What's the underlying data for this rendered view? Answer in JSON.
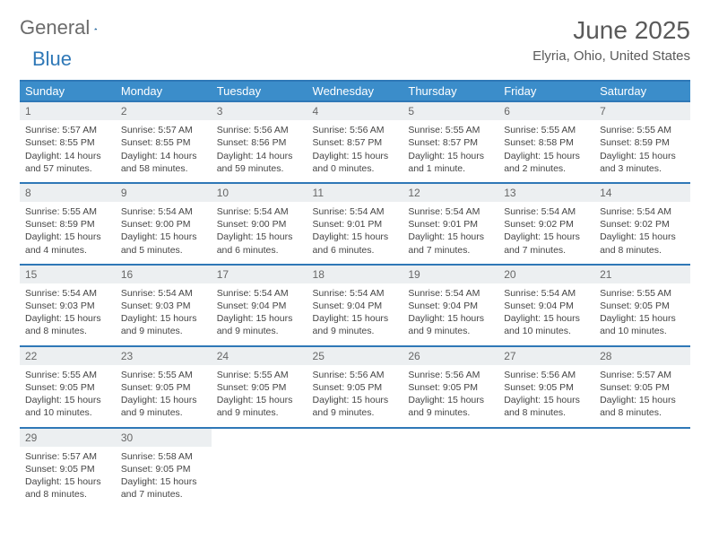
{
  "logo": {
    "word1": "General",
    "word2": "Blue"
  },
  "title": "June 2025",
  "location": "Elyria, Ohio, United States",
  "colors": {
    "header_bar": "#3b8dca",
    "header_border": "#2f78b7",
    "daynum_bg": "#eceff1",
    "text": "#454545",
    "location_text": "#5a5a5a"
  },
  "typography": {
    "month_title_fontsize": 28,
    "location_fontsize": 15,
    "dayheader_fontsize": 13,
    "body_fontsize": 10.5
  },
  "day_names": [
    "Sunday",
    "Monday",
    "Tuesday",
    "Wednesday",
    "Thursday",
    "Friday",
    "Saturday"
  ],
  "weeks": [
    [
      {
        "n": "1",
        "sunrise": "Sunrise: 5:57 AM",
        "sunset": "Sunset: 8:55 PM",
        "d1": "Daylight: 14 hours",
        "d2": "and 57 minutes."
      },
      {
        "n": "2",
        "sunrise": "Sunrise: 5:57 AM",
        "sunset": "Sunset: 8:55 PM",
        "d1": "Daylight: 14 hours",
        "d2": "and 58 minutes."
      },
      {
        "n": "3",
        "sunrise": "Sunrise: 5:56 AM",
        "sunset": "Sunset: 8:56 PM",
        "d1": "Daylight: 14 hours",
        "d2": "and 59 minutes."
      },
      {
        "n": "4",
        "sunrise": "Sunrise: 5:56 AM",
        "sunset": "Sunset: 8:57 PM",
        "d1": "Daylight: 15 hours",
        "d2": "and 0 minutes."
      },
      {
        "n": "5",
        "sunrise": "Sunrise: 5:55 AM",
        "sunset": "Sunset: 8:57 PM",
        "d1": "Daylight: 15 hours",
        "d2": "and 1 minute."
      },
      {
        "n": "6",
        "sunrise": "Sunrise: 5:55 AM",
        "sunset": "Sunset: 8:58 PM",
        "d1": "Daylight: 15 hours",
        "d2": "and 2 minutes."
      },
      {
        "n": "7",
        "sunrise": "Sunrise: 5:55 AM",
        "sunset": "Sunset: 8:59 PM",
        "d1": "Daylight: 15 hours",
        "d2": "and 3 minutes."
      }
    ],
    [
      {
        "n": "8",
        "sunrise": "Sunrise: 5:55 AM",
        "sunset": "Sunset: 8:59 PM",
        "d1": "Daylight: 15 hours",
        "d2": "and 4 minutes."
      },
      {
        "n": "9",
        "sunrise": "Sunrise: 5:54 AM",
        "sunset": "Sunset: 9:00 PM",
        "d1": "Daylight: 15 hours",
        "d2": "and 5 minutes."
      },
      {
        "n": "10",
        "sunrise": "Sunrise: 5:54 AM",
        "sunset": "Sunset: 9:00 PM",
        "d1": "Daylight: 15 hours",
        "d2": "and 6 minutes."
      },
      {
        "n": "11",
        "sunrise": "Sunrise: 5:54 AM",
        "sunset": "Sunset: 9:01 PM",
        "d1": "Daylight: 15 hours",
        "d2": "and 6 minutes."
      },
      {
        "n": "12",
        "sunrise": "Sunrise: 5:54 AM",
        "sunset": "Sunset: 9:01 PM",
        "d1": "Daylight: 15 hours",
        "d2": "and 7 minutes."
      },
      {
        "n": "13",
        "sunrise": "Sunrise: 5:54 AM",
        "sunset": "Sunset: 9:02 PM",
        "d1": "Daylight: 15 hours",
        "d2": "and 7 minutes."
      },
      {
        "n": "14",
        "sunrise": "Sunrise: 5:54 AM",
        "sunset": "Sunset: 9:02 PM",
        "d1": "Daylight: 15 hours",
        "d2": "and 8 minutes."
      }
    ],
    [
      {
        "n": "15",
        "sunrise": "Sunrise: 5:54 AM",
        "sunset": "Sunset: 9:03 PM",
        "d1": "Daylight: 15 hours",
        "d2": "and 8 minutes."
      },
      {
        "n": "16",
        "sunrise": "Sunrise: 5:54 AM",
        "sunset": "Sunset: 9:03 PM",
        "d1": "Daylight: 15 hours",
        "d2": "and 9 minutes."
      },
      {
        "n": "17",
        "sunrise": "Sunrise: 5:54 AM",
        "sunset": "Sunset: 9:04 PM",
        "d1": "Daylight: 15 hours",
        "d2": "and 9 minutes."
      },
      {
        "n": "18",
        "sunrise": "Sunrise: 5:54 AM",
        "sunset": "Sunset: 9:04 PM",
        "d1": "Daylight: 15 hours",
        "d2": "and 9 minutes."
      },
      {
        "n": "19",
        "sunrise": "Sunrise: 5:54 AM",
        "sunset": "Sunset: 9:04 PM",
        "d1": "Daylight: 15 hours",
        "d2": "and 9 minutes."
      },
      {
        "n": "20",
        "sunrise": "Sunrise: 5:54 AM",
        "sunset": "Sunset: 9:04 PM",
        "d1": "Daylight: 15 hours",
        "d2": "and 10 minutes."
      },
      {
        "n": "21",
        "sunrise": "Sunrise: 5:55 AM",
        "sunset": "Sunset: 9:05 PM",
        "d1": "Daylight: 15 hours",
        "d2": "and 10 minutes."
      }
    ],
    [
      {
        "n": "22",
        "sunrise": "Sunrise: 5:55 AM",
        "sunset": "Sunset: 9:05 PM",
        "d1": "Daylight: 15 hours",
        "d2": "and 10 minutes."
      },
      {
        "n": "23",
        "sunrise": "Sunrise: 5:55 AM",
        "sunset": "Sunset: 9:05 PM",
        "d1": "Daylight: 15 hours",
        "d2": "and 9 minutes."
      },
      {
        "n": "24",
        "sunrise": "Sunrise: 5:55 AM",
        "sunset": "Sunset: 9:05 PM",
        "d1": "Daylight: 15 hours",
        "d2": "and 9 minutes."
      },
      {
        "n": "25",
        "sunrise": "Sunrise: 5:56 AM",
        "sunset": "Sunset: 9:05 PM",
        "d1": "Daylight: 15 hours",
        "d2": "and 9 minutes."
      },
      {
        "n": "26",
        "sunrise": "Sunrise: 5:56 AM",
        "sunset": "Sunset: 9:05 PM",
        "d1": "Daylight: 15 hours",
        "d2": "and 9 minutes."
      },
      {
        "n": "27",
        "sunrise": "Sunrise: 5:56 AM",
        "sunset": "Sunset: 9:05 PM",
        "d1": "Daylight: 15 hours",
        "d2": "and 8 minutes."
      },
      {
        "n": "28",
        "sunrise": "Sunrise: 5:57 AM",
        "sunset": "Sunset: 9:05 PM",
        "d1": "Daylight: 15 hours",
        "d2": "and 8 minutes."
      }
    ],
    [
      {
        "n": "29",
        "sunrise": "Sunrise: 5:57 AM",
        "sunset": "Sunset: 9:05 PM",
        "d1": "Daylight: 15 hours",
        "d2": "and 8 minutes."
      },
      {
        "n": "30",
        "sunrise": "Sunrise: 5:58 AM",
        "sunset": "Sunset: 9:05 PM",
        "d1": "Daylight: 15 hours",
        "d2": "and 7 minutes."
      },
      null,
      null,
      null,
      null,
      null
    ]
  ]
}
